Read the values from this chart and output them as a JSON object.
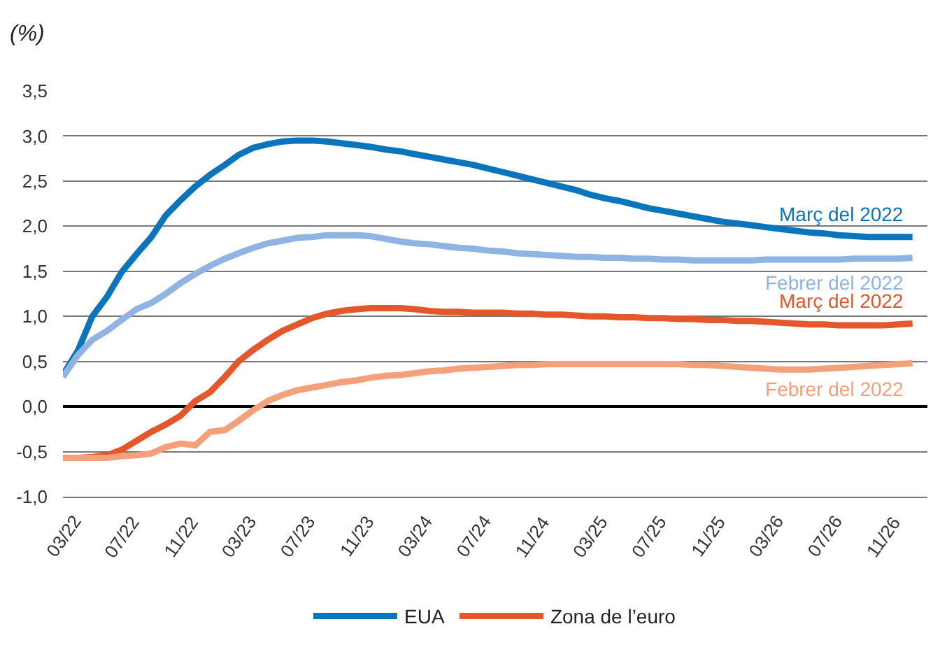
{
  "chart_data": {
    "type": "line",
    "ylabel": "(%)",
    "x": [
      "2022-03",
      "2022-04",
      "2022-05",
      "2022-06",
      "2022-07",
      "2022-08",
      "2022-09",
      "2022-10",
      "2022-11",
      "2022-12",
      "2023-01",
      "2023-02",
      "2023-03",
      "2023-04",
      "2023-05",
      "2023-06",
      "2023-07",
      "2023-08",
      "2023-09",
      "2023-10",
      "2023-11",
      "2023-12",
      "2024-01",
      "2024-02",
      "2024-03",
      "2024-04",
      "2024-05",
      "2024-06",
      "2024-07",
      "2024-08",
      "2024-09",
      "2024-10",
      "2024-11",
      "2024-12",
      "2025-01",
      "2025-02",
      "2025-03",
      "2025-04",
      "2025-05",
      "2025-06",
      "2025-07",
      "2025-08",
      "2025-09",
      "2025-10",
      "2025-11",
      "2025-12",
      "2026-01",
      "2026-02",
      "2026-03",
      "2026-04",
      "2026-05",
      "2026-06",
      "2026-07",
      "2026-08",
      "2026-09",
      "2026-10",
      "2026-11",
      "2026-12",
      "2027-01"
    ],
    "series": [
      {
        "name": "EUA",
        "color": "#0a74bd",
        "values": [
          0.35,
          0.62,
          1.0,
          1.22,
          1.49,
          1.69,
          1.88,
          2.12,
          2.29,
          2.44,
          2.57,
          2.68,
          2.79,
          2.87,
          2.91,
          2.94,
          2.95,
          2.95,
          2.94,
          2.92,
          2.9,
          2.88,
          2.85,
          2.83,
          2.8,
          2.77,
          2.74,
          2.71,
          2.68,
          2.64,
          2.6,
          2.56,
          2.52,
          2.48,
          2.44,
          2.4,
          2.35,
          2.31,
          2.28,
          2.24,
          2.2,
          2.17,
          2.14,
          2.11,
          2.08,
          2.05,
          2.03,
          2.01,
          1.99,
          1.97,
          1.95,
          1.93,
          1.92,
          1.9,
          1.89,
          1.88,
          1.88,
          1.88,
          1.88
        ]
      },
      {
        "color": "#8fb4e3",
        "values": [
          0.33,
          0.57,
          0.74,
          0.84,
          0.96,
          1.08,
          1.15,
          1.25,
          1.37,
          1.47,
          1.56,
          1.64,
          1.7,
          1.76,
          1.81,
          1.84,
          1.87,
          1.88,
          1.9,
          1.9,
          1.9,
          1.89,
          1.86,
          1.83,
          1.81,
          1.8,
          1.78,
          1.76,
          1.75,
          1.73,
          1.72,
          1.7,
          1.69,
          1.68,
          1.67,
          1.66,
          1.66,
          1.65,
          1.65,
          1.64,
          1.64,
          1.63,
          1.63,
          1.62,
          1.62,
          1.62,
          1.62,
          1.62,
          1.63,
          1.63,
          1.63,
          1.63,
          1.63,
          1.63,
          1.64,
          1.64,
          1.64,
          1.64,
          1.65
        ]
      },
      {
        "name": "Zona de l’euro",
        "color": "#e4572a",
        "values": [
          -0.57,
          -0.57,
          -0.56,
          -0.54,
          -0.48,
          -0.38,
          -0.28,
          -0.2,
          -0.1,
          0.06,
          0.16,
          0.33,
          0.5,
          0.63,
          0.74,
          0.84,
          0.91,
          0.98,
          1.03,
          1.06,
          1.08,
          1.09,
          1.09,
          1.09,
          1.08,
          1.06,
          1.05,
          1.05,
          1.04,
          1.04,
          1.04,
          1.03,
          1.03,
          1.02,
          1.02,
          1.01,
          1.0,
          1.0,
          0.99,
          0.99,
          0.98,
          0.98,
          0.97,
          0.97,
          0.96,
          0.96,
          0.95,
          0.95,
          0.94,
          0.93,
          0.92,
          0.91,
          0.91,
          0.9,
          0.9,
          0.9,
          0.9,
          0.91,
          0.92
        ]
      },
      {
        "color": "#f4a07a",
        "values": [
          -0.57,
          -0.57,
          -0.57,
          -0.57,
          -0.55,
          -0.54,
          -0.52,
          -0.45,
          -0.41,
          -0.43,
          -0.28,
          -0.26,
          -0.16,
          -0.04,
          0.06,
          0.13,
          0.18,
          0.21,
          0.24,
          0.27,
          0.29,
          0.32,
          0.34,
          0.35,
          0.37,
          0.39,
          0.4,
          0.42,
          0.43,
          0.44,
          0.45,
          0.46,
          0.46,
          0.47,
          0.47,
          0.47,
          0.47,
          0.47,
          0.47,
          0.47,
          0.47,
          0.47,
          0.47,
          0.46,
          0.46,
          0.45,
          0.44,
          0.43,
          0.42,
          0.41,
          0.41,
          0.41,
          0.42,
          0.43,
          0.44,
          0.45,
          0.46,
          0.47,
          0.48
        ]
      }
    ],
    "annotations": [
      "Març del 2022",
      "Febrer del 2022",
      "Març del 2022",
      "Febrer del 2022"
    ],
    "xlim": [
      "2022-03",
      "2027-02"
    ],
    "xticks": [
      {
        "value": "2022-03",
        "label": "03/22"
      },
      {
        "value": "2022-07",
        "label": "07/22"
      },
      {
        "value": "2022-11",
        "label": "11/22"
      },
      {
        "value": "2023-03",
        "label": "03/23"
      },
      {
        "value": "2023-07",
        "label": "07/23"
      },
      {
        "value": "2023-11",
        "label": "11/23"
      },
      {
        "value": "2024-03",
        "label": "03/24"
      },
      {
        "value": "2024-07",
        "label": "07/24"
      },
      {
        "value": "2024-11",
        "label": "11/24"
      },
      {
        "value": "2025-03",
        "label": "03/25"
      },
      {
        "value": "2025-07",
        "label": "07/25"
      },
      {
        "value": "2025-11",
        "label": "11/25"
      },
      {
        "value": "2026-03",
        "label": "03/26"
      },
      {
        "value": "2026-07",
        "label": "07/26"
      },
      {
        "value": "2026-11",
        "label": "11/26"
      }
    ],
    "ylim": [
      -1.0,
      3.5
    ],
    "yticks": [
      {
        "value": -1.0,
        "label": "-1,0"
      },
      {
        "value": -0.5,
        "label": "-0,5"
      },
      {
        "value": 0.0,
        "label": "0,0"
      },
      {
        "value": 0.5,
        "label": "0,5"
      },
      {
        "value": 1.0,
        "label": "1,0"
      },
      {
        "value": 1.5,
        "label": "1,5"
      },
      {
        "value": 2.0,
        "label": "2,0"
      },
      {
        "value": 2.5,
        "label": "2,5"
      },
      {
        "value": 3.0,
        "label": "3,0"
      },
      {
        "value": 3.5,
        "label": "3,5"
      }
    ],
    "grid": "y",
    "legend": "bottom",
    "marker": "none",
    "line_style": "solid"
  }
}
